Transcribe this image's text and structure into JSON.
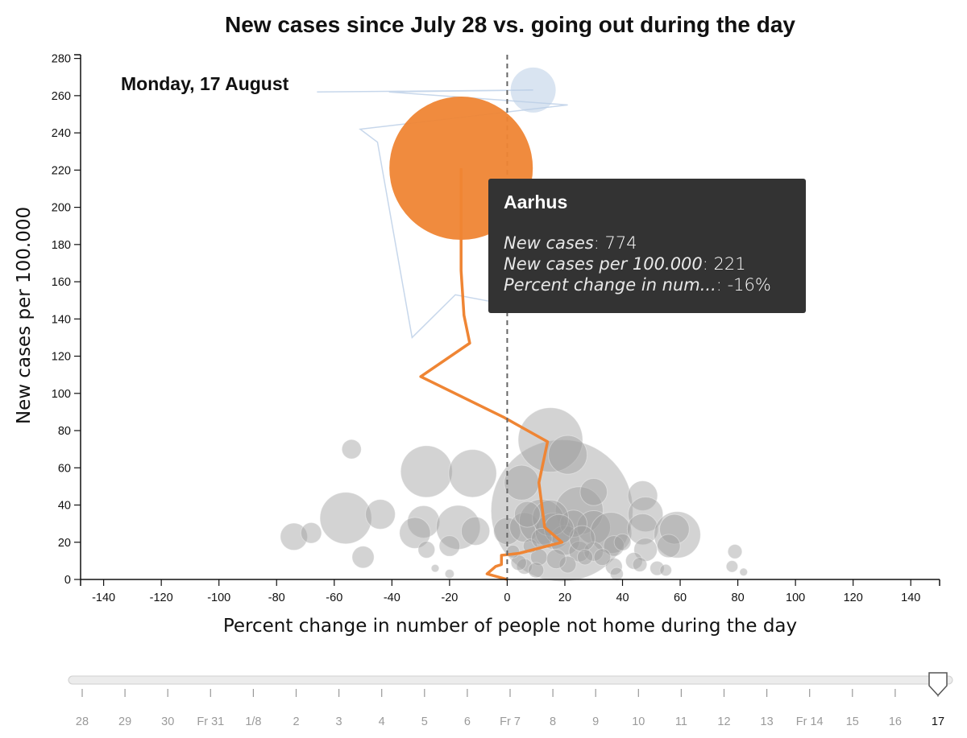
{
  "title": "New cases since July 28 vs. going out during the day",
  "date_label": "Monday, 17 August",
  "tooltip": {
    "title": "Aarhus",
    "rows": [
      {
        "key": "New cases",
        "value": "774"
      },
      {
        "key": "New cases per 100.000",
        "value": "221"
      },
      {
        "key": "Percent change in num...",
        "value": "-16%"
      }
    ]
  },
  "colors": {
    "highlight": "#ef8534",
    "bubbles": "#9e9e9e",
    "trail": "#b9cde6",
    "tooltip_bg": "#333333"
  },
  "chart_data": {
    "type": "scatter",
    "title": "New cases since July 28 vs. going out during the day",
    "xlabel": "Percent change in number of people not home during the day",
    "ylabel": "New cases per 100.000",
    "xlim": [
      -148,
      150
    ],
    "ylim": [
      0,
      282
    ],
    "xticks": [
      -140,
      -120,
      -100,
      -80,
      -60,
      -40,
      -20,
      0,
      20,
      40,
      60,
      80,
      100,
      120,
      140
    ],
    "yticks": [
      0,
      20,
      40,
      60,
      80,
      100,
      120,
      140,
      160,
      180,
      200,
      220,
      240,
      260,
      280
    ],
    "reference_line_x": 0,
    "highlight": {
      "name": "Aarhus",
      "new_cases": 774,
      "x": -16,
      "y": 221,
      "trail": [
        [
          0,
          0
        ],
        [
          -7,
          3
        ],
        [
          -4,
          7
        ],
        [
          -2,
          8
        ],
        [
          -2,
          13
        ],
        [
          4,
          14
        ],
        [
          19,
          20
        ],
        [
          13,
          28
        ],
        [
          11,
          52
        ],
        [
          14,
          74
        ],
        [
          -1,
          87
        ],
        [
          -30,
          109
        ],
        [
          -13,
          127
        ],
        [
          -15,
          142
        ],
        [
          -16,
          166
        ],
        [
          -16,
          221
        ]
      ]
    },
    "trail_blue": [
      [
        -66,
        262
      ],
      [
        9,
        263
      ],
      [
        -41,
        262
      ],
      [
        21,
        255
      ],
      [
        -51,
        242
      ],
      [
        -45,
        235
      ],
      [
        -33,
        130
      ],
      [
        -18,
        153
      ],
      [
        -1,
        148
      ]
    ],
    "blue_bubble": {
      "x": 9,
      "y": 263,
      "r": 8
    },
    "bubbles": [
      {
        "x": 19,
        "y": 37,
        "r": 11
      },
      {
        "x": 15,
        "y": 75,
        "r": 5
      },
      {
        "x": 21,
        "y": 67,
        "r": 3
      },
      {
        "x": -28,
        "y": 58,
        "r": 4
      },
      {
        "x": -54,
        "y": 70,
        "r": 1.5
      },
      {
        "x": -56,
        "y": 33,
        "r": 4
      },
      {
        "x": -44,
        "y": 35,
        "r": 2.3
      },
      {
        "x": -29,
        "y": 31,
        "r": 2.5
      },
      {
        "x": -12,
        "y": 57,
        "r": 3.7
      },
      {
        "x": 5,
        "y": 52,
        "r": 2.7
      },
      {
        "x": -17,
        "y": 28,
        "r": 3.4
      },
      {
        "x": -11,
        "y": 26,
        "r": 2.2
      },
      {
        "x": -32,
        "y": 25,
        "r": 2.4
      },
      {
        "x": -74,
        "y": 23,
        "r": 2.1
      },
      {
        "x": -68,
        "y": 25,
        "r": 1.6
      },
      {
        "x": -50,
        "y": 12,
        "r": 1.7
      },
      {
        "x": 25,
        "y": 37,
        "r": 3.7
      },
      {
        "x": 30,
        "y": 47,
        "r": 2.1
      },
      {
        "x": 30,
        "y": 28,
        "r": 2.6
      },
      {
        "x": 36,
        "y": 25,
        "r": 3.2
      },
      {
        "x": 47,
        "y": 45,
        "r": 2.3
      },
      {
        "x": 48,
        "y": 35,
        "r": 2.7
      },
      {
        "x": 47,
        "y": 27,
        "r": 2.4
      },
      {
        "x": 59,
        "y": 24,
        "r": 3.6
      },
      {
        "x": 58,
        "y": 27,
        "r": 2.3
      },
      {
        "x": 56,
        "y": 18,
        "r": 1.8
      },
      {
        "x": 48,
        "y": 16,
        "r": 1.8
      },
      {
        "x": 0,
        "y": 26,
        "r": 2.1
      },
      {
        "x": 6,
        "y": 28,
        "r": 2.3
      },
      {
        "x": 12,
        "y": 31,
        "r": 3.5
      },
      {
        "x": 16,
        "y": 26,
        "r": 2.8
      },
      {
        "x": 20,
        "y": 21,
        "r": 2.3
      },
      {
        "x": 25,
        "y": 15,
        "r": 1.6
      },
      {
        "x": 30,
        "y": 15,
        "r": 1.5
      },
      {
        "x": 37,
        "y": 18,
        "r": 1.6
      },
      {
        "x": 37,
        "y": 7,
        "r": 1.3
      },
      {
        "x": 33,
        "y": 12,
        "r": 1.3
      },
      {
        "x": 21,
        "y": 8,
        "r": 1.3
      },
      {
        "x": 11,
        "y": 12,
        "r": 1.3
      },
      {
        "x": 6,
        "y": 7,
        "r": 1.2
      },
      {
        "x": 10,
        "y": 5,
        "r": 1.2
      },
      {
        "x": 44,
        "y": 10,
        "r": 1.3
      },
      {
        "x": 46,
        "y": 8,
        "r": 1.1
      },
      {
        "x": 52,
        "y": 6,
        "r": 1.1
      },
      {
        "x": 55,
        "y": 5,
        "r": 0.9
      },
      {
        "x": 38,
        "y": 3,
        "r": 1.0
      },
      {
        "x": 79,
        "y": 15,
        "r": 1.1
      },
      {
        "x": 78,
        "y": 7,
        "r": 0.9
      },
      {
        "x": 82,
        "y": 4,
        "r": 0.6
      },
      {
        "x": -20,
        "y": 18,
        "r": 1.6
      },
      {
        "x": -28,
        "y": 16,
        "r": 1.3
      },
      {
        "x": -20,
        "y": 3,
        "r": 0.7
      },
      {
        "x": -25,
        "y": 6,
        "r": 0.6
      },
      {
        "x": 23,
        "y": 30,
        "r": 2.1
      },
      {
        "x": 26,
        "y": 22,
        "r": 2.0
      },
      {
        "x": 27,
        "y": 12,
        "r": 1.2
      },
      {
        "x": 4,
        "y": 9,
        "r": 1.2
      },
      {
        "x": 2,
        "y": 15,
        "r": 1.0
      },
      {
        "x": 8,
        "y": 18,
        "r": 1.1
      },
      {
        "x": 40,
        "y": 20,
        "r": 1.3
      },
      {
        "x": 15,
        "y": 33,
        "r": 2.8
      },
      {
        "x": 18,
        "y": 27,
        "r": 2.3
      },
      {
        "x": 12,
        "y": 22,
        "r": 1.6
      },
      {
        "x": 17,
        "y": 11,
        "r": 1.5
      },
      {
        "x": 7,
        "y": 35,
        "r": 2.0
      }
    ]
  },
  "slider": {
    "labels": [
      "28",
      "29",
      "30",
      "Fr 31",
      "1/8",
      "2",
      "3",
      "4",
      "5",
      "6",
      "Fr 7",
      "8",
      "9",
      "10",
      "11",
      "12",
      "13",
      "Fr 14",
      "15",
      "16",
      "17"
    ],
    "selected_index": 20
  }
}
